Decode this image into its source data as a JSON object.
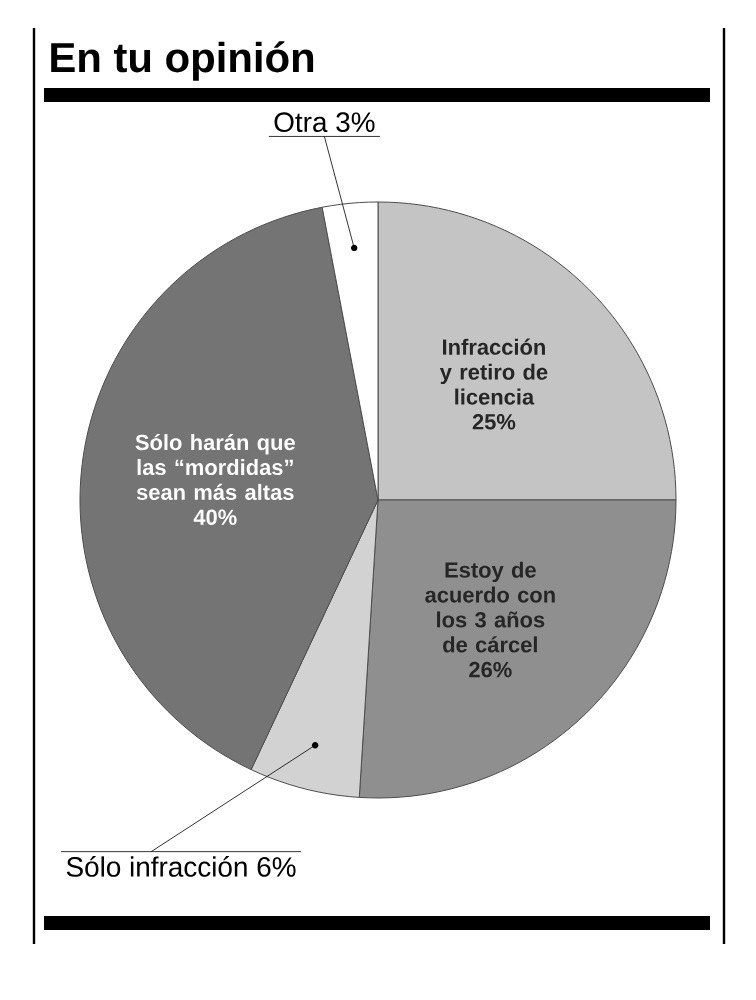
{
  "chart_data": {
    "type": "pie",
    "title": "En tu opinión",
    "categories": [
      "Infracción y retiro de licencia",
      "Estoy de acuerdo con los 3 años de cárcel",
      "Sólo infracción",
      "Sólo harán que las “mordidas” sean más altas",
      "Otra"
    ],
    "values": [
      25,
      26,
      6,
      40,
      3
    ],
    "value_labels": [
      "25%",
      "26%",
      "6%",
      "40%",
      "3%"
    ],
    "colors": [
      "#c4c4c4",
      "#8f8f8f",
      "#d2d2d2",
      "#747474",
      "#ffffff"
    ]
  }
}
